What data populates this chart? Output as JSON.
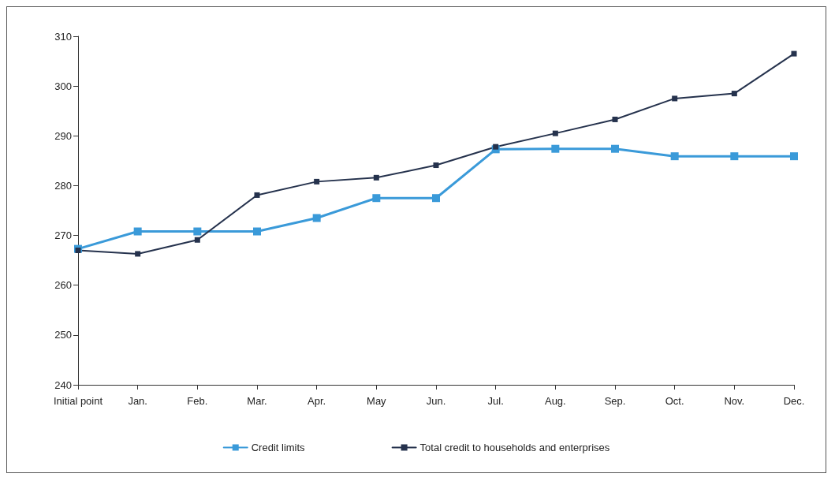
{
  "chart_data": {
    "type": "line",
    "categories": [
      "Initial point",
      "Jan.",
      "Feb.",
      "Mar.",
      "Apr.",
      "May",
      "Jun.",
      "Jul.",
      "Aug.",
      "Sep.",
      "Oct.",
      "Nov.",
      "Dec."
    ],
    "series": [
      {
        "name": "Credit limits",
        "color": "#3a9ad9",
        "values": [
          267.3,
          270.8,
          270.8,
          270.8,
          273.5,
          277.5,
          277.5,
          287.3,
          287.4,
          287.4,
          285.9,
          285.9,
          285.9
        ]
      },
      {
        "name": "Total credit to households and enterprises",
        "color": "#25324d",
        "values": [
          267,
          266.3,
          269.1,
          278.1,
          280.8,
          281.6,
          284.1,
          287.8,
          290.5,
          293.3,
          297.5,
          298.5,
          306.5
        ]
      }
    ],
    "ylim": [
      240,
      310
    ],
    "yticks": [
      240,
      250,
      260,
      270,
      280,
      290,
      300,
      310
    ],
    "grid": false,
    "legend": "bottom",
    "marker": "square",
    "line_style": "solid"
  }
}
